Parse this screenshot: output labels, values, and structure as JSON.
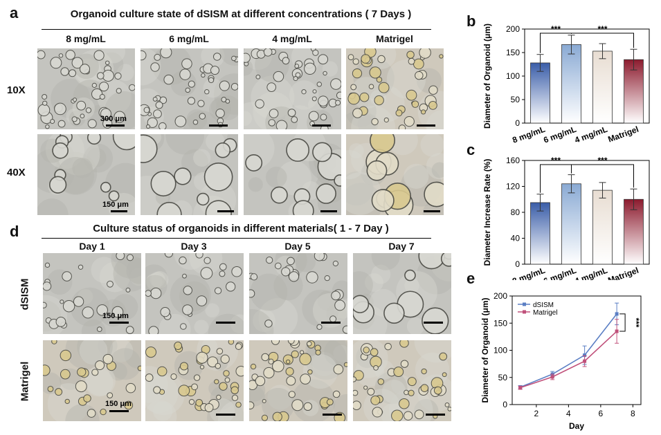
{
  "panel_a": {
    "label": "a",
    "title": "Organoid culture state of dSISM at different concentrations ( 7 Days )",
    "columns": [
      "8 mg/mL",
      "6 mg/mL",
      "4 mg/mL",
      "Matrigel"
    ],
    "rows": [
      "10X",
      "40X"
    ],
    "scale_10x": "300 μm",
    "scale_40x": "150 μm"
  },
  "panel_d": {
    "label": "d",
    "title": "Culture status of organoids in different materials( 1 - 7 Day )",
    "columns": [
      "Day 1",
      "Day 3",
      "Day 5",
      "Day 7"
    ],
    "rows": [
      "dSISM",
      "Matrigel"
    ],
    "scale_row1": "150 μm",
    "scale_row2": "150 μm"
  },
  "colors": {
    "bar_8": "#3a5da8",
    "bar_6": "#8aaad4",
    "bar_4": "#e8ddd2",
    "bar_matrigel": "#8c1b2e",
    "line_dsism": "#5b7fc4",
    "line_matrigel": "#c0507a"
  },
  "chart_data": [
    {
      "panel": "b",
      "type": "bar",
      "categories": [
        "8 mg/mL",
        "6 mg/mL",
        "4 mg/mL",
        "Matrigel"
      ],
      "values": [
        128,
        167,
        153,
        135
      ],
      "errors": [
        18,
        20,
        16,
        22
      ],
      "ylabel": "Diameter of Organoid (μm)",
      "ylim": [
        0,
        200
      ],
      "yticks": [
        0,
        50,
        100,
        150,
        200
      ],
      "significance": [
        {
          "from": 0,
          "to": 1,
          "label": "***"
        },
        {
          "from": 1,
          "to": 3,
          "label": "***"
        }
      ]
    },
    {
      "panel": "c",
      "type": "bar",
      "categories": [
        "8 mg/mL",
        "6 mg/mL",
        "4 mg/mL",
        "Matrigel"
      ],
      "values": [
        95,
        124,
        114,
        100
      ],
      "errors": [
        13,
        14,
        12,
        16
      ],
      "ylabel": "Diameter Increase Rate (%)",
      "ylim": [
        0,
        160
      ],
      "yticks": [
        0,
        40,
        80,
        120,
        160
      ],
      "significance": [
        {
          "from": 0,
          "to": 1,
          "label": "***"
        },
        {
          "from": 1,
          "to": 3,
          "label": "***"
        }
      ]
    },
    {
      "panel": "e",
      "type": "line",
      "x": [
        1,
        3,
        5,
        7
      ],
      "series": [
        {
          "name": "dSISM",
          "values": [
            32,
            56,
            91,
            167
          ],
          "errors": [
            3,
            5,
            17,
            20
          ]
        },
        {
          "name": "Matrigel",
          "values": [
            31,
            51,
            80,
            135
          ],
          "errors": [
            3,
            5,
            10,
            22
          ]
        }
      ],
      "xlabel": "Day",
      "ylabel": "Diameter of Organoid (μm)",
      "xlim": [
        0.5,
        8.5
      ],
      "xticks": [
        2,
        4,
        6,
        8
      ],
      "ylim": [
        0,
        200
      ],
      "yticks": [
        0,
        50,
        100,
        150,
        200
      ],
      "significance_label": "***",
      "legend": "top-left"
    }
  ]
}
